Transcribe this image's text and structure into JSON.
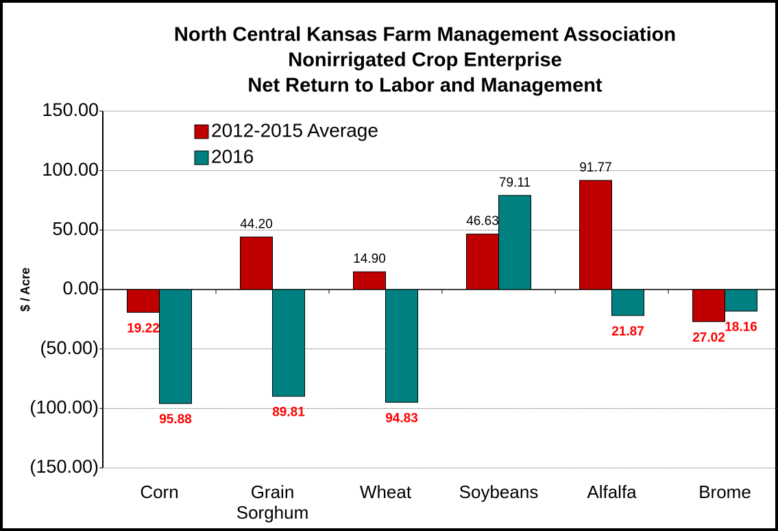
{
  "chart_data": {
    "type": "bar",
    "title": [
      "North Central Kansas Farm Management Association",
      "Nonirrigated Crop Enterprise",
      "Net Return to Labor and Management"
    ],
    "y_label": "$ / Acre",
    "categories": [
      "Corn",
      "Grain Sorghum",
      "Wheat",
      "Soybeans",
      "Alfalfa",
      "Brome"
    ],
    "series": [
      {
        "name": "2012-2015 Average",
        "color": "#c00000",
        "values": [
          -19.22,
          44.2,
          14.9,
          46.63,
          91.77,
          -27.02
        ],
        "value_labels": [
          "19.22",
          "44.20",
          "14.90",
          "46.63",
          "91.77",
          "27.02"
        ]
      },
      {
        "name": "2016",
        "color": "#008080",
        "values": [
          -95.88,
          -89.81,
          -94.83,
          79.11,
          -21.87,
          -18.16
        ],
        "value_labels": [
          "95.88",
          "89.81",
          "94.83",
          "79.11",
          "21.87",
          "18.16"
        ]
      }
    ],
    "ylim": [
      -150,
      150
    ],
    "yticks": [
      {
        "value": -150,
        "label": "(150.00)"
      },
      {
        "value": -100,
        "label": "(100.00)"
      },
      {
        "value": -50,
        "label": "(50.00)"
      },
      {
        "value": 0,
        "label": "0.00"
      },
      {
        "value": 50,
        "label": "50.00"
      },
      {
        "value": 100,
        "label": "100.00"
      },
      {
        "value": 150,
        "label": "150.00"
      }
    ],
    "grid": true,
    "legend": "top-left"
  }
}
